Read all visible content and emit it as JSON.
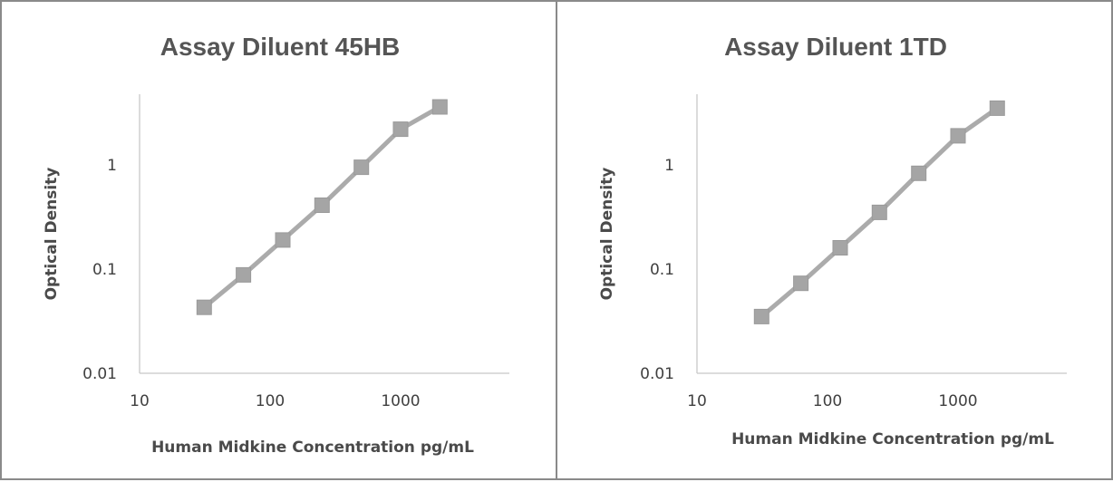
{
  "chart_data": [
    {
      "type": "line",
      "title": "Assay Diluent 45HB",
      "xlabel": "Human Midkine  Concentration pg/mL",
      "ylabel": "Optical Density",
      "x_scale": "log",
      "y_scale": "log",
      "xlim": [
        10,
        6000
      ],
      "ylim": [
        0.01,
        6
      ],
      "x_ticks": [
        "10",
        "100",
        "1000"
      ],
      "y_ticks": [
        "0.01",
        "0.1",
        "1"
      ],
      "grid": false,
      "legend": "none",
      "color": "#a5a5a5",
      "series": [
        {
          "x": [
            31.25,
            62.5,
            125,
            250,
            500,
            1000,
            2000
          ],
          "y": [
            0.043,
            0.088,
            0.19,
            0.41,
            0.95,
            2.2,
            3.6
          ]
        }
      ]
    },
    {
      "type": "line",
      "title": "Assay Diluent 1TD",
      "xlabel": "Human Midkine  Concentration pg/mL",
      "ylabel": "Optical Density",
      "x_scale": "log",
      "y_scale": "log",
      "xlim": [
        10,
        6000
      ],
      "ylim": [
        0.01,
        6
      ],
      "x_ticks": [
        "10",
        "100",
        "1000"
      ],
      "y_ticks": [
        "0.01",
        "0.1",
        "1"
      ],
      "grid": false,
      "legend": "none",
      "color": "#a5a5a5",
      "series": [
        {
          "x": [
            31.25,
            62.5,
            125,
            250,
            500,
            1000,
            2000
          ],
          "y": [
            0.035,
            0.073,
            0.16,
            0.35,
            0.83,
            1.9,
            3.5
          ]
        }
      ]
    }
  ]
}
